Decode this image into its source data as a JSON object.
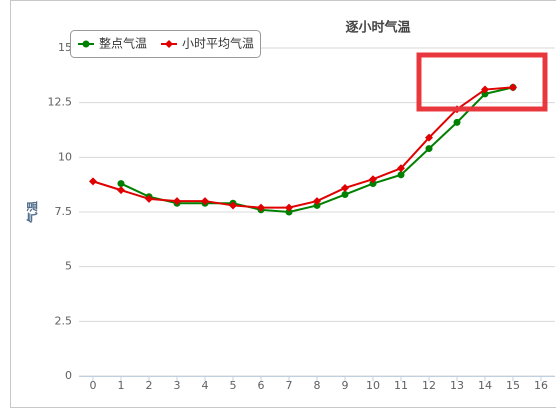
{
  "chart_data": {
    "type": "line",
    "title": "逐小时气温",
    "y_label": "气温",
    "series": [
      {
        "name": "整点气温",
        "color": "#008000",
        "marker": "circle",
        "x": [
          1,
          2,
          3,
          4,
          5,
          6,
          7,
          8,
          9,
          10,
          11,
          12,
          13,
          14,
          15
        ],
        "values": [
          8.8,
          8.2,
          7.9,
          7.9,
          7.9,
          7.6,
          7.5,
          7.8,
          8.3,
          8.8,
          9.2,
          10.4,
          11.6,
          12.9,
          13.2
        ]
      },
      {
        "name": "小时平均气温",
        "color": "#e00000",
        "marker": "diamond",
        "x": [
          0,
          1,
          2,
          3,
          4,
          5,
          6,
          7,
          8,
          9,
          10,
          11,
          12,
          13,
          14,
          15
        ],
        "values": [
          8.9,
          8.5,
          8.1,
          8.0,
          8.0,
          7.8,
          7.7,
          7.7,
          8.0,
          8.6,
          9.0,
          9.5,
          10.9,
          12.2,
          13.1,
          13.2
        ]
      }
    ],
    "xlim": [
      -0.5,
      16.5
    ],
    "xticks": [
      0,
      1,
      2,
      3,
      4,
      5,
      6,
      7,
      8,
      9,
      10,
      11,
      12,
      13,
      14,
      15,
      16
    ],
    "ylim": [
      0,
      15
    ],
    "yticks": [
      0,
      2.5,
      5,
      7.5,
      10,
      12.5,
      15
    ],
    "grid": true
  }
}
